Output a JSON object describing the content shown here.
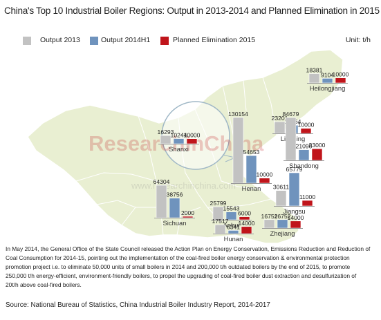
{
  "title": "China's Top 10 Industrial Boiler Regions: Output in 2013-2014 and Planned Elimination in 2015",
  "unit": "Unit: t/h",
  "legend": [
    {
      "label": "Output 2013",
      "color": "#c2c2c2"
    },
    {
      "label": "Output 2014H1",
      "color": "#6f93bd"
    },
    {
      "label": "Planned Elimination 2015",
      "color": "#c0151b"
    }
  ],
  "watermark": {
    "line1": "ResearchInChina",
    "line2": "www.researchinchina.com"
  },
  "caption": "In May 2014, the General Office of the State Council released the Action Plan on Energy Conservation, Emissions Reduction and Reduction of Coal Consumption for 2014-15, pointing out the implementation of the coal-fired boiler energy conservation & environmental protection promotion project i.e. to eliminate 50,000 units of small boilers in 2014 and 200,000 t/h outdated boilers by the end of 2015, to promote 250,000 t/h energy-efficient, environment-friendly boilers, to propel the upgrading of coal-fired boiler dust extraction and desulfurization of 20t/h above coal-fired boilers.",
  "source": "Source: National Bureau of Statistics, China Industrial Boiler Industry Report, 2014-2017",
  "chart_data": {
    "type": "bar",
    "title": "China's Top 10 Industrial Boiler Regions: Output in 2013-2014 and Planned Elimination in 2015",
    "unit": "t/h",
    "series_names": [
      "Output 2013",
      "Output 2014H1",
      "Planned Elimination 2015"
    ],
    "categories": [
      "Heilongjiang",
      "Shanxi",
      "Liaoning",
      "Shandong",
      "Henan",
      "Jiangsu",
      "Sichuan",
      "Anhui",
      "Zhejiang",
      "Hunan"
    ],
    "series": [
      {
        "name": "Output 2013",
        "values": [
          18381,
          16293,
          23201,
          84679,
          130154,
          30611,
          64304,
          25799,
          16752,
          17517
        ]
      },
      {
        "name": "Output 2014H1",
        "values": [
          9104,
          10244,
          16164,
          21090,
          54653,
          65779,
          38756,
          15543,
          16752,
          6341
        ]
      },
      {
        "name": "Planned Elimination 2015",
        "values": [
          10000,
          10000,
          10000,
          23000,
          10000,
          11000,
          2000,
          6000,
          14000,
          14000
        ]
      }
    ]
  }
}
